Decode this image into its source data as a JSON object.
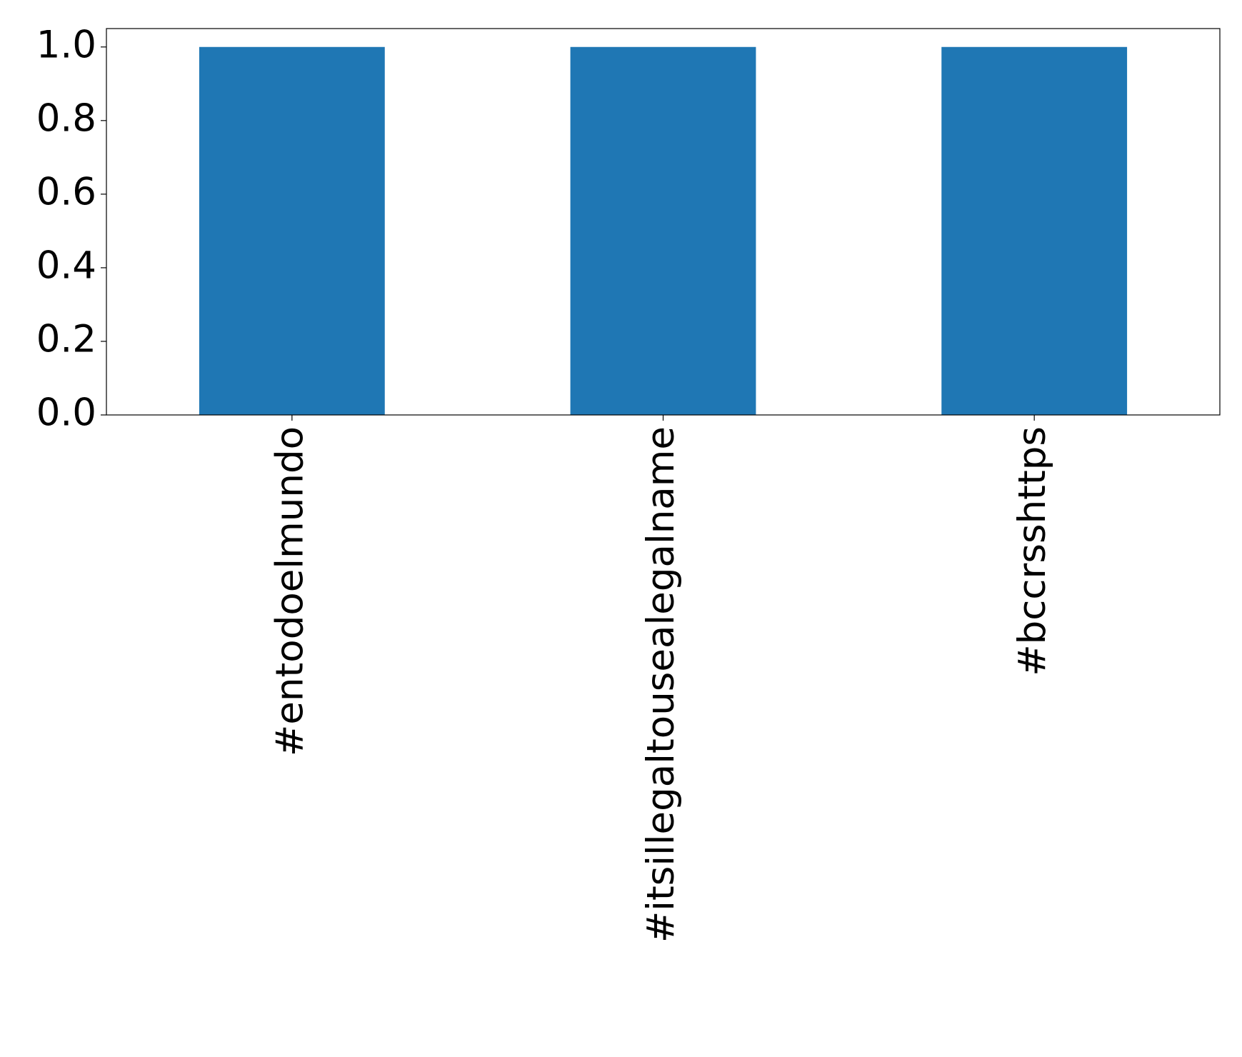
{
  "chart_data": {
    "type": "bar",
    "categories": [
      "#entodoelmundo",
      "#itsillegaltousealegalname",
      "#bccrsshttps"
    ],
    "values": [
      1,
      1,
      1
    ],
    "color": "#1f77b4",
    "ylim": [
      0,
      1.05
    ],
    "yticks": [
      {
        "value": 0,
        "label": "0.0"
      },
      0.2,
      0.4,
      0.6,
      0.8,
      {
        "value": 1,
        "label": "1.0"
      }
    ],
    "grid": false
  }
}
